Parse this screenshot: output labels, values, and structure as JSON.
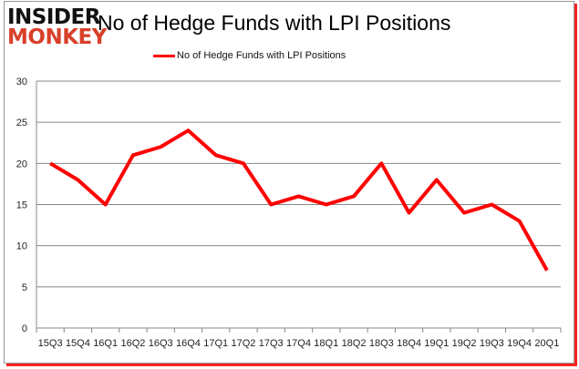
{
  "logo": {
    "line1": "INSIDER",
    "line2": "MONKEY"
  },
  "chart_data": {
    "type": "line",
    "title": "No of Hedge Funds with LPI Positions",
    "categories": [
      "15Q3",
      "15Q4",
      "16Q1",
      "16Q2",
      "16Q3",
      "16Q4",
      "17Q1",
      "17Q2",
      "17Q3",
      "17Q4",
      "18Q1",
      "18Q2",
      "18Q3",
      "18Q4",
      "19Q1",
      "19Q2",
      "19Q3",
      "19Q4",
      "20Q1"
    ],
    "series": [
      {
        "name": "No of Hedge Funds with LPI Positions",
        "color": "#ff0000",
        "values": [
          20,
          18,
          15,
          21,
          22,
          24,
          21,
          20,
          15,
          16,
          15,
          16,
          20,
          14,
          18,
          14,
          15,
          13,
          7
        ]
      }
    ],
    "ylim": [
      0,
      30
    ],
    "yticks": [
      0,
      5,
      10,
      15,
      20,
      25,
      30
    ],
    "grid": true,
    "legend": "top"
  }
}
